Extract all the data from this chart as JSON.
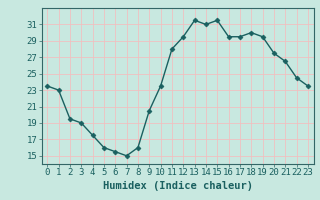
{
  "x": [
    0,
    1,
    2,
    3,
    4,
    5,
    6,
    7,
    8,
    9,
    10,
    11,
    12,
    13,
    14,
    15,
    16,
    17,
    18,
    19,
    20,
    21,
    22,
    23
  ],
  "y": [
    23.5,
    23.0,
    19.5,
    19.0,
    17.5,
    16.0,
    15.5,
    15.0,
    16.0,
    20.5,
    23.5,
    28.0,
    29.5,
    31.5,
    31.0,
    31.5,
    29.5,
    29.5,
    30.0,
    29.5,
    27.5,
    26.5,
    24.5,
    23.5
  ],
  "xlabel": "Humidex (Indice chaleur)",
  "bg_color": "#c8e8e0",
  "grid_color": "#f0c0c0",
  "line_color": "#1a6060",
  "marker_color": "#1a6060",
  "ylim": [
    14,
    33
  ],
  "xlim": [
    -0.5,
    23.5
  ],
  "yticks": [
    15,
    17,
    19,
    21,
    23,
    25,
    27,
    29,
    31
  ],
  "xticks": [
    0,
    1,
    2,
    3,
    4,
    5,
    6,
    7,
    8,
    9,
    10,
    11,
    12,
    13,
    14,
    15,
    16,
    17,
    18,
    19,
    20,
    21,
    22,
    23
  ],
  "xlabel_fontsize": 7.5,
  "tick_fontsize": 6.5,
  "line_width": 1.0,
  "marker_size": 2.5,
  "spine_color": "#336666"
}
